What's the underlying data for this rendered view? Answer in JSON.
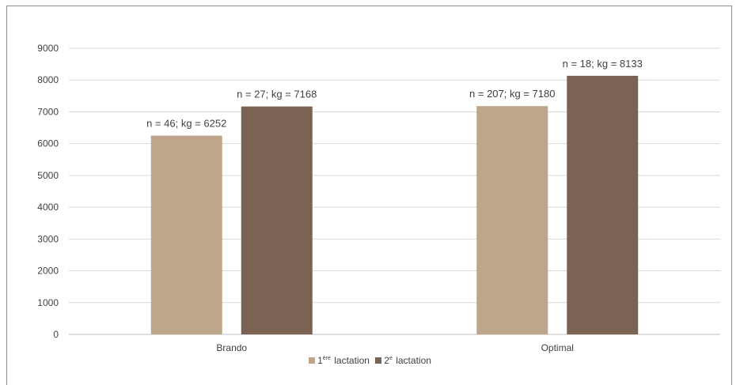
{
  "chart_data": {
    "type": "bar",
    "categories": [
      "Brando",
      "Optimal"
    ],
    "series": [
      {
        "name": "1ère lactation",
        "name_base": "1",
        "name_sup": "ère",
        "name_rest": "lactation",
        "color": "#bda68b",
        "values": [
          6252,
          7180
        ],
        "labels": [
          "n = 46; kg = 6252",
          "n = 207; kg = 7180"
        ]
      },
      {
        "name": "2e lactation",
        "name_base": "2",
        "name_sup": "e",
        "name_rest": "lactation",
        "color": "#7a6353",
        "values": [
          7168,
          8133
        ],
        "labels": [
          "n = 27; kg = 7168",
          "n = 18; kg = 8133"
        ]
      }
    ],
    "ylim": [
      0,
      9000
    ],
    "yticks": [
      "0",
      "1000",
      "2000",
      "3000",
      "4000",
      "5000",
      "6000",
      "7000",
      "8000",
      "9000"
    ],
    "grid": true,
    "legend": "bottom",
    "title": "",
    "xlabel": "",
    "ylabel": ""
  }
}
